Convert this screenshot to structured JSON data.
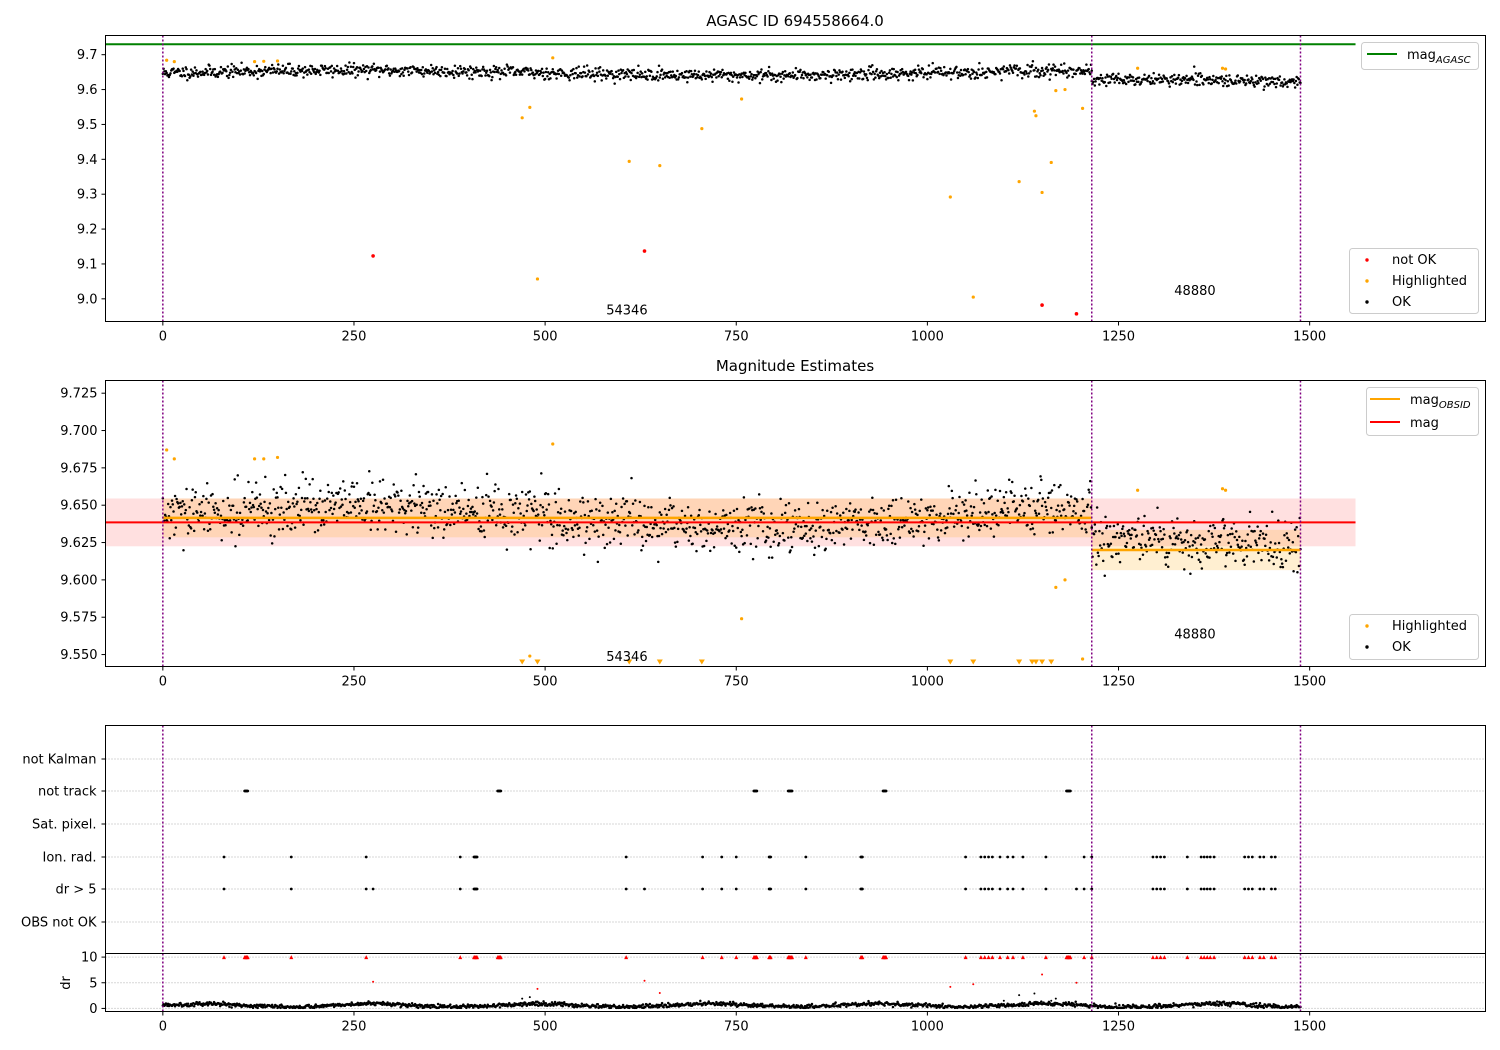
{
  "chart_data": [
    {
      "type": "scatter",
      "title": "AGASC ID 694558664.0",
      "xlim": [
        -75,
        1730
      ],
      "ylim": [
        8.935,
        9.755
      ],
      "xticks": [
        "0",
        "250",
        "500",
        "750",
        "1000",
        "1250",
        "1500"
      ],
      "xtick_values": [
        0,
        250,
        500,
        750,
        1000,
        1250,
        1500
      ],
      "yticks": [
        "9.0",
        "9.1",
        "9.2",
        "9.3",
        "9.4",
        "9.5",
        "9.6",
        "9.7"
      ],
      "ytick_values": [
        9.0,
        9.1,
        9.2,
        9.3,
        9.4,
        9.5,
        9.6,
        9.7
      ],
      "grid": false,
      "obsid_boundaries": [
        0,
        1215,
        1488
      ],
      "obsid_labels": [
        {
          "text": "54346",
          "x": 607,
          "y": 8.97
        },
        {
          "text": "48880",
          "x": 1350,
          "y": 9.025
        }
      ],
      "agasc_mag": 9.73,
      "agasc_mag_range": [
        -75,
        1560
      ],
      "legend_upper": {
        "label": "mag",
        "subscript": "AGASC",
        "color": "#008000",
        "position": "top-right"
      },
      "legend_lower": {
        "position": "lower-right",
        "entries": [
          {
            "label": "not OK",
            "color": "#ff0000"
          },
          {
            "label": "Highlighted",
            "color": "#ffa500"
          },
          {
            "label": "OK",
            "color": "#000000"
          }
        ]
      },
      "baseline_segments": [
        {
          "x": [
            0,
            1215
          ],
          "mean": 9.648,
          "scatter": 0.012
        },
        {
          "x": [
            1215,
            1488
          ],
          "mean": 9.622,
          "scatter": 0.011
        }
      ],
      "not_ok": [
        [
          275,
          9.123
        ],
        [
          630,
          9.137
        ],
        [
          1150,
          8.982
        ],
        [
          1195,
          8.957
        ]
      ],
      "highlighted": [
        [
          5,
          9.684
        ],
        [
          15,
          9.68
        ],
        [
          120,
          9.68
        ],
        [
          132,
          9.681
        ],
        [
          150,
          9.682
        ],
        [
          470,
          9.519
        ],
        [
          480,
          9.549
        ],
        [
          490,
          9.057
        ],
        [
          510,
          9.691
        ],
        [
          610,
          9.394
        ],
        [
          650,
          9.382
        ],
        [
          705,
          9.488
        ],
        [
          757,
          9.573
        ],
        [
          1030,
          9.292
        ],
        [
          1060,
          9.005
        ],
        [
          1120,
          9.336
        ],
        [
          1140,
          9.538
        ],
        [
          1142,
          9.525
        ],
        [
          1150,
          9.305
        ],
        [
          1162,
          9.391
        ],
        [
          1168,
          9.597
        ],
        [
          1180,
          9.6
        ],
        [
          1203,
          9.546
        ],
        [
          1275,
          9.661
        ],
        [
          1386,
          9.661
        ],
        [
          1390,
          9.659
        ]
      ]
    },
    {
      "type": "scatter",
      "title": "Magnitude Estimates",
      "xlim": [
        -75,
        1730
      ],
      "ylim": [
        9.542,
        9.7335
      ],
      "xticks": [
        "0",
        "250",
        "500",
        "750",
        "1000",
        "1250",
        "1500"
      ],
      "xtick_values": [
        0,
        250,
        500,
        750,
        1000,
        1250,
        1500
      ],
      "yticks": [
        "9.550",
        "9.575",
        "9.600",
        "9.625",
        "9.650",
        "9.675",
        "9.700",
        "9.725"
      ],
      "ytick_values": [
        9.55,
        9.575,
        9.6,
        9.625,
        9.65,
        9.675,
        9.7,
        9.725
      ],
      "grid": false,
      "obsid_boundaries": [
        0,
        1215,
        1488
      ],
      "obsid_labels": [
        {
          "text": "54346",
          "x": 607,
          "y": 9.549
        },
        {
          "text": "48880",
          "x": 1350,
          "y": 9.564
        }
      ],
      "mag": {
        "value": 9.6385,
        "band": [
          9.6225,
          9.6545
        ],
        "x": [
          -75,
          1560
        ],
        "color": "#ff0000"
      },
      "mag_obsid": [
        {
          "x": [
            0,
            1215
          ],
          "value": 9.6415,
          "band": [
            9.6285,
            9.6545
          ]
        },
        {
          "x": [
            1215,
            1488
          ],
          "value": 9.62,
          "band": [
            9.6065,
            9.6335
          ]
        }
      ],
      "legend_upper": {
        "position": "top-right",
        "entries": [
          {
            "label": "mag",
            "subscript": "OBSID",
            "color": "#ffa500"
          },
          {
            "label": "mag",
            "subscript": "",
            "color": "#ff0000"
          }
        ]
      },
      "legend_lower": {
        "position": "lower-right",
        "entries": [
          {
            "label": "Highlighted",
            "color": "#ffa500"
          },
          {
            "label": "OK",
            "color": "#000000"
          }
        ]
      },
      "baseline_segments": [
        {
          "x": [
            0,
            1215
          ],
          "mean": 9.642,
          "scatter": 0.012
        },
        {
          "x": [
            1215,
            1488
          ],
          "mean": 9.621,
          "scatter": 0.011
        }
      ],
      "highlighted": [
        [
          5,
          9.687
        ],
        [
          15,
          9.681
        ],
        [
          120,
          9.681
        ],
        [
          132,
          9.681
        ],
        [
          150,
          9.682
        ],
        [
          480,
          9.549
        ],
        [
          510,
          9.691
        ],
        [
          757,
          9.574
        ],
        [
          1168,
          9.595
        ],
        [
          1180,
          9.6
        ],
        [
          1203,
          9.547
        ],
        [
          1275,
          9.66
        ],
        [
          1386,
          9.661
        ],
        [
          1390,
          9.66
        ]
      ],
      "below_range_markers": [
        470,
        490,
        610,
        650,
        705,
        1030,
        1060,
        1120,
        1137,
        1142,
        1150,
        1162
      ]
    },
    {
      "type": "scatter",
      "title": "",
      "xlim": [
        -75,
        1730
      ],
      "categories": [
        "not Kalman",
        "not track",
        "Sat. pixel.",
        "Ion. rad.",
        "dr > 5",
        "OBS not OK"
      ],
      "grid": "horizontal-dotted",
      "obsid_boundaries": [
        0,
        1215,
        1488
      ],
      "flags": {
        "not Kalman": [],
        "not track": [
          107,
          108,
          109,
          110,
          111,
          438,
          439,
          440,
          441,
          442,
          773,
          774,
          775,
          776,
          777,
          818,
          819,
          820,
          821,
          822,
          823,
          942,
          943,
          944,
          945,
          946,
          1182,
          1183,
          1184,
          1185,
          1186,
          1187
        ],
        "Sat. pixel.": [],
        "Ion. rad.": [
          80,
          168,
          266,
          389,
          407,
          408,
          409,
          410,
          411,
          606,
          706,
          731,
          750,
          793,
          794,
          795,
          841,
          913,
          914,
          915,
          1050,
          1070,
          1075,
          1080,
          1085,
          1095,
          1105,
          1112,
          1125,
          1155,
          1205,
          1215,
          1295,
          1300,
          1305,
          1310,
          1340,
          1358,
          1362,
          1366,
          1370,
          1375,
          1415,
          1420,
          1425,
          1435,
          1440,
          1450,
          1455
        ],
        "dr > 5": [
          80,
          168,
          266,
          275,
          389,
          407,
          408,
          409,
          410,
          411,
          606,
          630,
          706,
          731,
          750,
          793,
          794,
          795,
          841,
          913,
          914,
          915,
          1050,
          1070,
          1075,
          1080,
          1085,
          1095,
          1105,
          1112,
          1125,
          1155,
          1195,
          1205,
          1215,
          1295,
          1300,
          1305,
          1310,
          1340,
          1358,
          1362,
          1366,
          1370,
          1375,
          1415,
          1420,
          1425,
          1435,
          1440,
          1450,
          1455
        ],
        "OBS not OK": []
      }
    },
    {
      "type": "scatter",
      "title": "",
      "ylabel": "dr",
      "xlim": [
        -75,
        1730
      ],
      "ylim": [
        -0.6,
        10.7
      ],
      "xticks": [
        "0",
        "250",
        "500",
        "750",
        "1000",
        "1250",
        "1500"
      ],
      "xtick_values": [
        0,
        250,
        500,
        750,
        1000,
        1250,
        1500
      ],
      "yticks": [
        "0",
        "5",
        "10"
      ],
      "ytick_values": [
        0,
        5,
        10
      ],
      "grid": "horizontal-dotted",
      "clip_value": 10,
      "obsid_boundaries": [
        0,
        1215,
        1488
      ],
      "clipped_markers": [
        80,
        107,
        108,
        109,
        110,
        111,
        168,
        266,
        389,
        407,
        408,
        409,
        410,
        411,
        438,
        439,
        440,
        441,
        442,
        606,
        706,
        731,
        750,
        773,
        774,
        775,
        776,
        777,
        793,
        794,
        795,
        818,
        819,
        820,
        821,
        822,
        823,
        841,
        913,
        914,
        915,
        942,
        943,
        944,
        945,
        946,
        1050,
        1070,
        1075,
        1080,
        1085,
        1095,
        1105,
        1112,
        1125,
        1155,
        1182,
        1183,
        1184,
        1185,
        1186,
        1187,
        1205,
        1215,
        1295,
        1300,
        1305,
        1310,
        1340,
        1358,
        1362,
        1366,
        1370,
        1375,
        1415,
        1420,
        1425,
        1435,
        1440,
        1450,
        1455
      ],
      "outliers_red": [
        [
          275,
          5.2
        ],
        [
          490,
          3.8
        ],
        [
          630,
          5.4
        ],
        [
          650,
          3.0
        ],
        [
          1030,
          4.2
        ],
        [
          1060,
          4.7
        ],
        [
          1150,
          6.6
        ],
        [
          1195,
          5.0
        ]
      ],
      "outliers_black": [
        [
          470,
          1.9
        ],
        [
          480,
          2.2
        ],
        [
          1100,
          1.5
        ],
        [
          1120,
          2.6
        ],
        [
          1140,
          2.9
        ],
        [
          1142,
          1.3
        ],
        [
          1162,
          1.5
        ],
        [
          1168,
          1.9
        ]
      ],
      "baseline": {
        "x": [
          0,
          1488
        ],
        "mean": 0.6,
        "scatter": 0.3
      }
    }
  ]
}
